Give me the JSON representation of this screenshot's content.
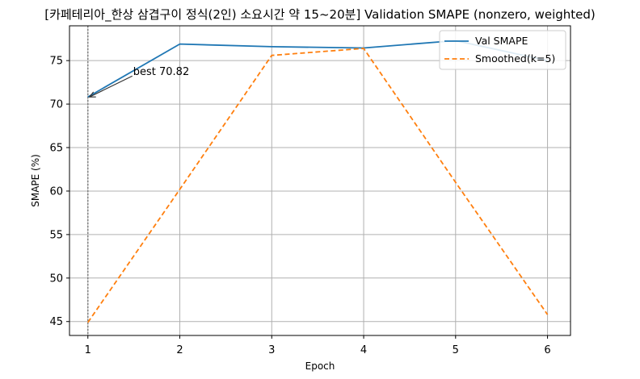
{
  "chart_data": {
    "type": "line",
    "title": "[카페테리아_한상 삼겹구이 정식(2인) 소요시간 약 15~20분] Validation SMAPE (nonzero, weighted)",
    "xlabel": "Epoch",
    "ylabel": "SMAPE (%)",
    "x": [
      1,
      2,
      3,
      4,
      5,
      6
    ],
    "xlim": [
      0.8,
      6.25
    ],
    "ylim": [
      43.4,
      79.0
    ],
    "xticks": [
      "1",
      "2",
      "3",
      "4",
      "5",
      "6"
    ],
    "yticks": [
      "45",
      "50",
      "55",
      "60",
      "65",
      "70",
      "75"
    ],
    "grid": true,
    "legend_position": "top-right",
    "series": [
      {
        "name": "Val SMAPE",
        "values": [
          70.82,
          76.9,
          76.6,
          76.45,
          77.3,
          75.0
        ],
        "color": "#1f77b4",
        "style": "solid"
      },
      {
        "name": "Smoothed(k=5)",
        "values": [
          44.9,
          60.2,
          75.6,
          76.4,
          61.0,
          45.8
        ],
        "color": "#ff7f0e",
        "style": "dashed"
      }
    ],
    "annotation": {
      "text": "best 70.82",
      "x": 1,
      "y": 70.82
    },
    "best_epoch_line": {
      "x": 1,
      "color": "#808080",
      "style": "dotted"
    }
  }
}
